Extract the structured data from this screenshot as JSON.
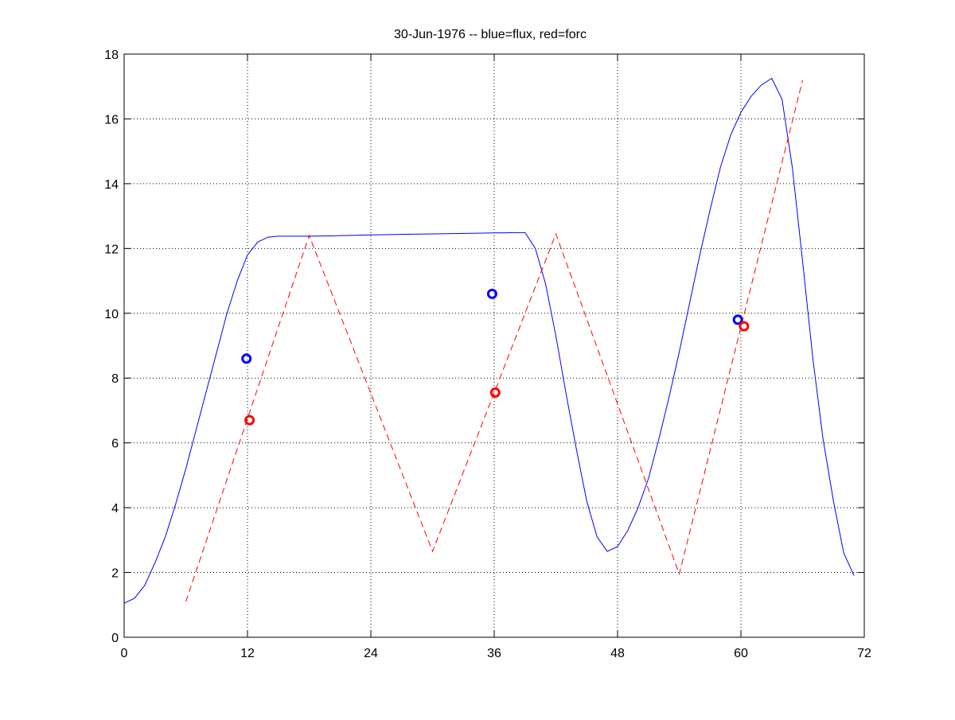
{
  "chart_data": {
    "type": "line",
    "title": "30-Jun-1976 -- blue=flux, red=forc",
    "xlabel": "",
    "ylabel": "",
    "xlim": [
      0,
      72
    ],
    "ylim": [
      0,
      18
    ],
    "xticks": [
      0,
      12,
      24,
      36,
      48,
      60,
      72
    ],
    "yticks": [
      0,
      2,
      4,
      6,
      8,
      10,
      12,
      14,
      16,
      18
    ],
    "xtick_labels": [
      "0",
      "12",
      "24",
      "36",
      "48",
      "60",
      "72"
    ],
    "ytick_labels": [
      "0",
      "2",
      "4",
      "6",
      "8",
      "10",
      "12",
      "14",
      "16",
      "18"
    ],
    "grid": true,
    "series": [
      {
        "color": "#0000ff",
        "style": "solid",
        "x": [
          0,
          1,
          2,
          3,
          4,
          5,
          6,
          7,
          8,
          9,
          10,
          11,
          12,
          13,
          14,
          15,
          16,
          17,
          18,
          20,
          24,
          28,
          30,
          32,
          36,
          38,
          39,
          40,
          41,
          42,
          43,
          44,
          45,
          46,
          47,
          48,
          49,
          50,
          51,
          52,
          53,
          54,
          55,
          56,
          57,
          58,
          59,
          60,
          61,
          62,
          63,
          64,
          65,
          66,
          67,
          68,
          69,
          70,
          71
        ],
        "y": [
          1.05,
          1.2,
          1.6,
          2.3,
          3.1,
          4.1,
          5.2,
          6.4,
          7.6,
          8.8,
          10.0,
          11.0,
          11.8,
          12.2,
          12.35,
          12.38,
          12.38,
          12.38,
          12.38,
          12.39,
          12.42,
          12.44,
          12.45,
          12.46,
          12.48,
          12.49,
          12.49,
          12.0,
          10.9,
          9.3,
          7.5,
          5.8,
          4.2,
          3.1,
          2.65,
          2.8,
          3.3,
          4.0,
          4.9,
          6.1,
          7.4,
          8.8,
          10.3,
          11.8,
          13.2,
          14.5,
          15.5,
          16.2,
          16.7,
          17.05,
          17.25,
          16.6,
          14.5,
          11.6,
          8.6,
          6.1,
          4.2,
          2.6,
          1.9
        ]
      },
      {
        "color": "#ff0000",
        "style": "dashed",
        "x": [
          6,
          18,
          30,
          42,
          54,
          66
        ],
        "y": [
          1.1,
          12.4,
          2.65,
          12.45,
          1.95,
          17.2
        ]
      },
      {
        "color": "#0000ff",
        "style": "marker-circle",
        "x": [
          11.9,
          35.8,
          59.7
        ],
        "y": [
          8.6,
          10.6,
          9.8
        ]
      },
      {
        "color": "#ff0000",
        "style": "marker-circle",
        "x": [
          12.2,
          36.1,
          60.3
        ],
        "y": [
          6.7,
          7.55,
          9.6
        ]
      }
    ]
  }
}
